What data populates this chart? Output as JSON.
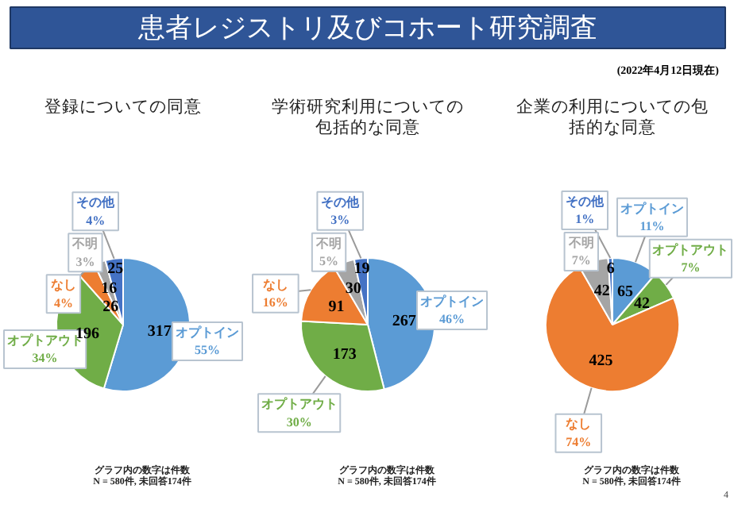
{
  "chart_data": [
    {
      "type": "pie",
      "title": "登録についての同意",
      "categories": [
        "オプトイン\n55%",
        "オプトアウト\n34%",
        "なし\n4%",
        "不明\n3%",
        "その他\n4%"
      ],
      "values": [
        317,
        196,
        26,
        16,
        25
      ],
      "colors": [
        "#5b9bd5",
        "#70ad47",
        "#ed7d31",
        "#a5a5a5",
        "#4472c4"
      ],
      "data_labels": true,
      "annotations": [
        "患者レジストリ及びコホート研究調査",
        "(2022年4月12日現在)",
        "グラフ内の数字は件数\nN = 580件, 未回答174件"
      ]
    },
    {
      "type": "pie",
      "title": "学術研究利用についての包括的な同意",
      "categories": [
        "オプトイン\n46%",
        "オプトアウト\n30%",
        "なし\n16%",
        "不明\n5%",
        "その他\n3%"
      ],
      "values": [
        267,
        173,
        91,
        30,
        19
      ],
      "colors": [
        "#5b9bd5",
        "#70ad47",
        "#ed7d31",
        "#a5a5a5",
        "#4472c4"
      ],
      "data_labels": true,
      "annotations": [
        "グラフ内の数字は件数\nN = 580件, 未回答174件"
      ]
    },
    {
      "type": "pie",
      "title": "企業の利用についての包括的な同意",
      "categories": [
        "オプトイン\n11%",
        "オプトアウト\n7%",
        "なし\n74%",
        "不明\n7%",
        "その他\n1%"
      ],
      "values": [
        65,
        42,
        425,
        42,
        6
      ],
      "colors": [
        "#5b9bd5",
        "#70ad47",
        "#ed7d31",
        "#a5a5a5",
        "#4472c4"
      ],
      "data_labels": true,
      "annotations": [
        "グラフ内の数字は件数\nN = 580件, 未回答174件",
        "4"
      ]
    }
  ]
}
